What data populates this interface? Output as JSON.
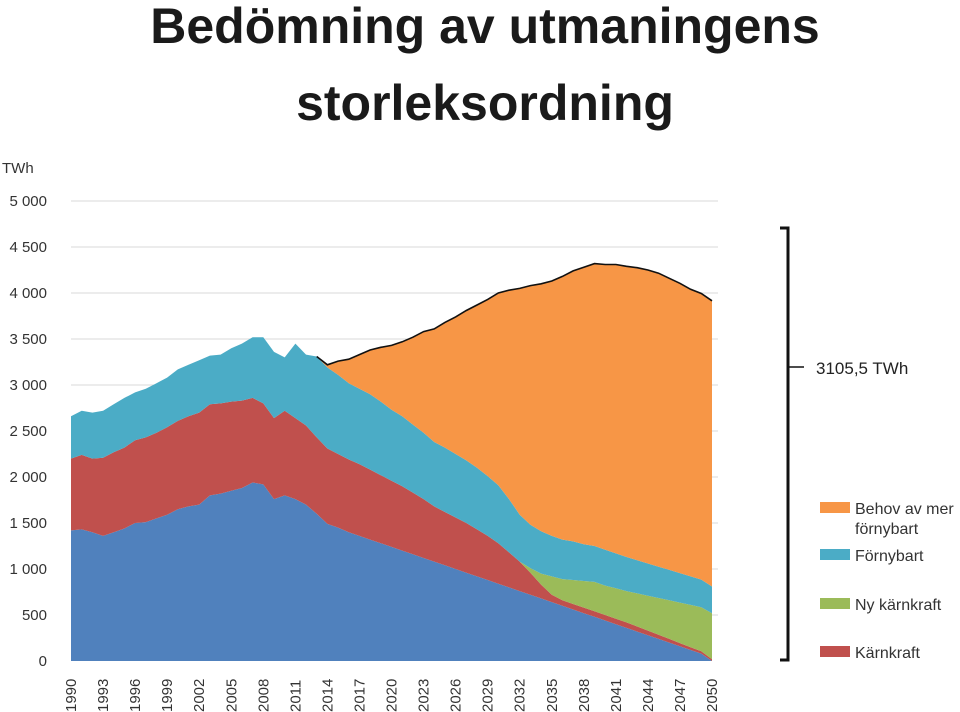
{
  "chart_data": {
    "type": "area",
    "title_lines": [
      "Bedömning av utmaningens",
      "storleksordning"
    ],
    "ylabel": "TWh",
    "ylim": [
      0,
      5000
    ],
    "y_ticks": [
      0,
      500,
      1000,
      1500,
      2000,
      2500,
      3000,
      3500,
      4000,
      4500,
      5000
    ],
    "y_tick_labels": [
      "0",
      "500",
      "1 000",
      "1 500",
      "2 000",
      "2 500",
      "3 000",
      "3 500",
      "4 000",
      "4 500",
      "5 000"
    ],
    "x_tick_labels": [
      "1990",
      "1993",
      "1996",
      "1999",
      "2002",
      "2005",
      "2008",
      "2011",
      "2014",
      "2017",
      "2020",
      "2023",
      "2026",
      "2029",
      "2032",
      "2035",
      "2038",
      "2041",
      "2044",
      "2047",
      "2050"
    ],
    "x": [
      1990,
      1991,
      1992,
      1993,
      1994,
      1995,
      1996,
      1997,
      1998,
      1999,
      2000,
      2001,
      2002,
      2003,
      2004,
      2005,
      2006,
      2007,
      2008,
      2009,
      2010,
      2011,
      2012,
      2013,
      2014,
      2015,
      2016,
      2017,
      2018,
      2019,
      2020,
      2021,
      2022,
      2023,
      2024,
      2025,
      2026,
      2027,
      2028,
      2029,
      2030,
      2031,
      2032,
      2033,
      2034,
      2035,
      2036,
      2037,
      2038,
      2039,
      2040,
      2041,
      2042,
      2043,
      2044,
      2045,
      2046,
      2047,
      2048,
      2049,
      2050
    ],
    "stacked": true,
    "series": [
      {
        "name": "Kärnkraft",
        "color": "#c0504d",
        "values": [
          780,
          810,
          800,
          850,
          870,
          880,
          900,
          920,
          930,
          950,
          960,
          980,
          1000,
          990,
          980,
          970,
          950,
          920,
          880,
          880,
          920,
          880,
          860,
          830,
          820,
          800,
          790,
          780,
          760,
          740,
          720,
          700,
          670,
          640,
          600,
          580,
          560,
          540,
          510,
          480,
          440,
          380,
          320,
          240,
          150,
          80,
          60,
          60,
          60,
          60,
          60,
          60,
          60,
          55,
          50,
          45,
          40,
          35,
          30,
          25,
          20
        ]
      },
      {
        "name": "Ny kärnkraft",
        "color": "#9bbb59",
        "values": [
          0,
          0,
          0,
          0,
          0,
          0,
          0,
          0,
          0,
          0,
          0,
          0,
          0,
          0,
          0,
          0,
          0,
          0,
          0,
          0,
          0,
          0,
          0,
          0,
          0,
          0,
          0,
          0,
          0,
          0,
          0,
          0,
          0,
          0,
          0,
          0,
          0,
          0,
          0,
          0,
          0,
          0,
          0,
          50,
          120,
          200,
          230,
          260,
          290,
          320,
          320,
          330,
          340,
          360,
          380,
          400,
          420,
          440,
          460,
          480,
          500
        ]
      },
      {
        "name": "Förnybart",
        "color": "#4bacc6",
        "values": [
          460,
          480,
          500,
          510,
          520,
          540,
          520,
          530,
          540,
          540,
          560,
          560,
          570,
          530,
          530,
          580,
          620,
          660,
          720,
          720,
          580,
          810,
          770,
          880,
          880,
          860,
          830,
          820,
          820,
          800,
          770,
          760,
          740,
          720,
          700,
          700,
          690,
          680,
          670,
          650,
          630,
          580,
          510,
          470,
          460,
          440,
          430,
          420,
          400,
          390,
          390,
          380,
          370,
          360,
          350,
          340,
          330,
          320,
          310,
          300,
          290
        ]
      },
      {
        "name": "Behov av mer förnybart",
        "color": "#f79646",
        "values": [
          0,
          0,
          0,
          0,
          0,
          0,
          0,
          0,
          0,
          0,
          0,
          0,
          0,
          0,
          0,
          0,
          0,
          0,
          0,
          0,
          0,
          0,
          0,
          0,
          30,
          150,
          260,
          370,
          480,
          590,
          700,
          810,
          950,
          1100,
          1230,
          1360,
          1490,
          1630,
          1770,
          1920,
          2090,
          2270,
          2460,
          2600,
          2690,
          2770,
          2860,
          2940,
          3010,
          3070,
          3100,
          3140,
          3160,
          3180,
          3190,
          3190,
          3170,
          3150,
          3120,
          3110,
          3105.5
        ]
      },
      {
        "name": "",
        "color": "#5081bd",
        "base": true,
        "values": [
          1420,
          1430,
          1400,
          1360,
          1400,
          1440,
          1500,
          1510,
          1550,
          1590,
          1650,
          1680,
          1700,
          1800,
          1820,
          1850,
          1880,
          1940,
          1920,
          1760,
          1800,
          1760,
          1700,
          1600,
          1490,
          1450,
          1400,
          1360,
          1320,
          1280,
          1240,
          1200,
          1160,
          1120,
          1080,
          1040,
          1000,
          960,
          920,
          880,
          840,
          800,
          760,
          720,
          680,
          640,
          600,
          560,
          520,
          480,
          440,
          400,
          360,
          320,
          280,
          240,
          200,
          160,
          120,
          80,
          0
        ]
      }
    ],
    "annotation": "3105,5 TWh",
    "legend": [
      {
        "label_lines": [
          "Behov av mer",
          "förnybart"
        ],
        "color": "#f79646"
      },
      {
        "label_lines": [
          "Förnybart"
        ],
        "color": "#4bacc6"
      },
      {
        "label_lines": [
          "Ny kärnkraft"
        ],
        "color": "#9bbb59"
      },
      {
        "label_lines": [
          "Kärnkraft"
        ],
        "color": "#c0504d"
      }
    ],
    "legend_position": "right",
    "grid": true
  }
}
